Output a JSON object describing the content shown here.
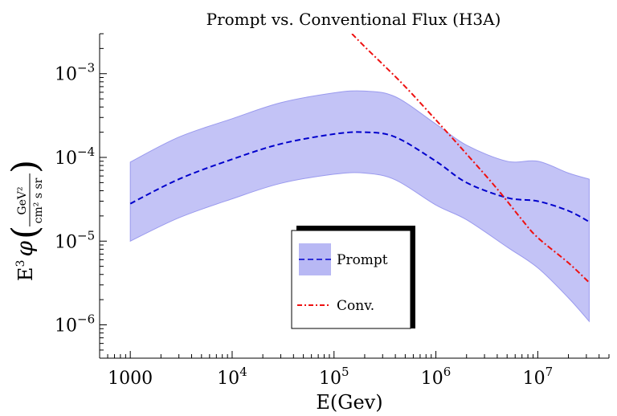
{
  "chart_data": {
    "type": "line",
    "title": "Prompt vs. Conventional Flux (H3A)",
    "xlabel": "E(Gev)",
    "ylabel_prefix": "E",
    "ylabel_sup": "3",
    "ylabel_phi": "φ",
    "ylabel_unit_num": "GeV²",
    "ylabel_unit_den": "cm² s sr",
    "x_scale": "log",
    "y_scale": "log",
    "xlim": [
      500,
      50000000
    ],
    "ylim": [
      4e-07,
      0.003
    ],
    "x_ticks": [
      {
        "value": 1000,
        "base": "1000",
        "exp": ""
      },
      {
        "value": 10000,
        "base": "10",
        "exp": "4"
      },
      {
        "value": 100000,
        "base": "10",
        "exp": "5"
      },
      {
        "value": 1000000,
        "base": "10",
        "exp": "6"
      },
      {
        "value": 10000000,
        "base": "10",
        "exp": "7"
      }
    ],
    "y_ticks": [
      {
        "value": 1e-06,
        "base": "10",
        "exp": "−6"
      },
      {
        "value": 1e-05,
        "base": "10",
        "exp": "−5"
      },
      {
        "value": 0.0001,
        "base": "10",
        "exp": "−4"
      },
      {
        "value": 0.001,
        "base": "10",
        "exp": "−3"
      }
    ],
    "legend_position": "center",
    "series": [
      {
        "name": "Prompt",
        "style": "dashed",
        "color": "#0000cc",
        "band_color": "#b8b8f4",
        "x": [
          1000,
          3000,
          10000,
          30000,
          100000,
          200000,
          400000,
          1000000,
          2000000,
          5000000,
          10000000,
          20000000,
          32000000
        ],
        "y": [
          2.8e-05,
          5.5e-05,
          9.5e-05,
          0.000145,
          0.00019,
          0.0002,
          0.000175,
          9e-05,
          5e-05,
          3.3e-05,
          3e-05,
          2.3e-05,
          1.7e-05
        ],
        "band_upper": [
          8.8e-05,
          0.000175,
          0.00029,
          0.00045,
          0.00059,
          0.00062,
          0.00053,
          0.00025,
          0.00014,
          9e-05,
          9e-05,
          6.5e-05,
          5.5e-05
        ],
        "band_lower": [
          1e-05,
          1.9e-05,
          3.2e-05,
          4.9e-05,
          6.3e-05,
          6.5e-05,
          5.4e-05,
          2.7e-05,
          1.8e-05,
          8.5e-06,
          4.8e-06,
          2.1e-06,
          1.1e-06
        ]
      },
      {
        "name": "Conv.",
        "style": "dash-dot",
        "color": "#ee1111",
        "x": [
          150000,
          200000,
          300000,
          500000,
          1000000,
          2000000,
          4000000,
          7000000,
          10000000,
          20000000,
          32000000
        ],
        "y": [
          0.003,
          0.0021,
          0.0013,
          0.0007,
          0.00028,
          0.00011,
          4.2e-05,
          1.8e-05,
          1.1e-05,
          5.5e-06,
          3.2e-06
        ]
      }
    ]
  }
}
